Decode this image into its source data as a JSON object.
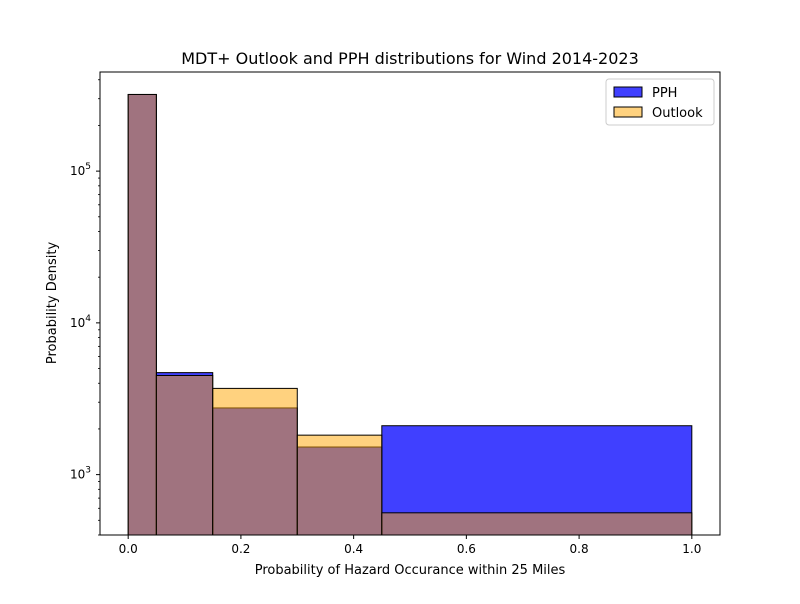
{
  "chart_data": {
    "type": "bar",
    "title": "MDT+ Outlook and PPH distributions for Wind 2014-2023",
    "xlabel": "Probability of Hazard Occurance within 25 Miles",
    "ylabel": "Probability Density",
    "xlim": [
      -0.05,
      1.05
    ],
    "ylim": [
      400,
      450000
    ],
    "y_scale": "log",
    "x_ticks": [
      0.0,
      0.2,
      0.4,
      0.6,
      0.8,
      1.0
    ],
    "x_tick_labels": [
      "0.0",
      "0.2",
      "0.4",
      "0.6",
      "0.8",
      "1.0"
    ],
    "y_major_ticks": [
      1000,
      10000,
      100000
    ],
    "y_tick_labels": [
      {
        "base": "10",
        "exp": "3"
      },
      {
        "base": "10",
        "exp": "4"
      },
      {
        "base": "10",
        "exp": "5"
      }
    ],
    "bin_edges": [
      0.0,
      0.05,
      0.15,
      0.3,
      0.45,
      1.0
    ],
    "series": [
      {
        "name": "PPH",
        "color": "#0000ff",
        "opacity": 0.75,
        "values": [
          320000,
          4700,
          2750,
          1520,
          2100
        ]
      },
      {
        "name": "Outlook",
        "color": "#ffa500",
        "opacity": 0.5,
        "values": [
          320000,
          4500,
          3700,
          1820,
          560
        ]
      }
    ],
    "legend_position": "top-right",
    "grid": false
  }
}
